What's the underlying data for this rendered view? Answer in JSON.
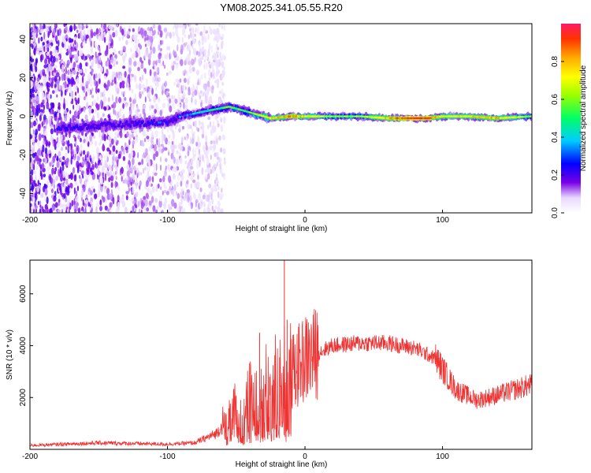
{
  "title": "YM08.2025.341.05.55.R20",
  "chart_data": [
    {
      "type": "heatmap",
      "name": "spectrogram",
      "xlabel": "Height of straight line (km)",
      "ylabel": "Frequency (Hz)",
      "xlim": [
        -200,
        165
      ],
      "ylim": [
        -50,
        48
      ],
      "xticks": [
        -200,
        -100,
        0,
        100
      ],
      "xtick_labels": [
        "-200",
        "-100",
        "0",
        "100"
      ],
      "yticks": [
        -40,
        -20,
        0,
        20,
        40
      ],
      "ytick_labels": [
        "-40",
        "-20",
        "0",
        "20",
        "40"
      ],
      "colorbar": {
        "label": "Normalized spectral amplitude",
        "range": [
          0,
          1
        ],
        "ticks": [
          0,
          0.2,
          0.4,
          0.6,
          0.8
        ],
        "tick_labels": [
          "0.0",
          "0.2",
          "0.4",
          "0.6",
          "0.8"
        ]
      },
      "ridge": {
        "x": [
          -175,
          -150,
          -130,
          -100,
          -90,
          -70,
          -55,
          -45,
          -35,
          -25,
          -10,
          0,
          20,
          40,
          60,
          80,
          90,
          100,
          120,
          140,
          165
        ],
        "freq": [
          -6,
          -5,
          -4,
          -3,
          0,
          3,
          5,
          3,
          1,
          -1,
          0,
          0,
          0,
          0,
          -1,
          -1,
          -1,
          0,
          0,
          -1,
          0
        ],
        "amplitude": [
          0.25,
          0.2,
          0.2,
          0.3,
          0.35,
          0.45,
          0.55,
          0.5,
          0.6,
          0.75,
          0.85,
          0.75,
          0.6,
          0.6,
          0.8,
          0.95,
          0.9,
          0.7,
          0.75,
          0.8,
          0.55
        ]
      },
      "noise_region_x": [
        -200,
        -65
      ]
    },
    {
      "type": "line",
      "name": "snr",
      "xlabel": "Height of straight line (km)",
      "ylabel": "SNR (10 * v/v)",
      "xlim": [
        -200,
        165
      ],
      "ylim": [
        0,
        7300
      ],
      "xticks": [
        -200,
        -100,
        0,
        100
      ],
      "xtick_labels": [
        "-200",
        "-100",
        "0",
        "100"
      ],
      "yticks": [
        2000,
        4000,
        6000
      ],
      "ytick_labels": [
        "2000",
        "4000",
        "6000"
      ],
      "color": "#ee3333",
      "envelope": {
        "x": [
          -200,
          -150,
          -100,
          -80,
          -65,
          -55,
          -45,
          -35,
          -25,
          -15,
          0,
          20,
          40,
          60,
          80,
          95,
          110,
          125,
          140,
          165
        ],
        "y": [
          150,
          250,
          200,
          250,
          600,
          1200,
          1600,
          2000,
          2300,
          2600,
          3500,
          4000,
          4100,
          4100,
          3900,
          3500,
          2300,
          1900,
          2100,
          2500
        ]
      },
      "spikes": [
        {
          "x": -33,
          "y": 4500
        },
        {
          "x": -15,
          "y": 7300
        },
        {
          "x": -13,
          "y": 5000
        }
      ]
    }
  ]
}
